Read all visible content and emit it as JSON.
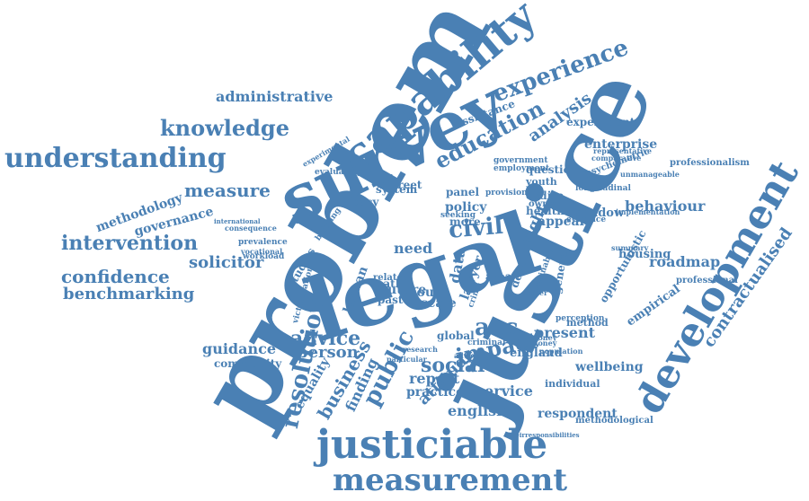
{
  "colors": {
    "word": "#4a80b4",
    "background": "#ffffff"
  },
  "words": [
    {
      "text": "problem"
    },
    {
      "text": "justice"
    },
    {
      "text": "legal"
    },
    {
      "text": "survey"
    },
    {
      "text": "development"
    },
    {
      "text": "capability"
    },
    {
      "text": "justiciable"
    },
    {
      "text": "measurement"
    },
    {
      "text": "understanding"
    },
    {
      "text": "experience"
    },
    {
      "text": "education"
    },
    {
      "text": "knowledge"
    },
    {
      "text": "intervention"
    },
    {
      "text": "resolution"
    },
    {
      "text": "civil"
    },
    {
      "text": "public"
    },
    {
      "text": "impact"
    },
    {
      "text": "social"
    },
    {
      "text": "advice"
    },
    {
      "text": "person"
    },
    {
      "text": "acc"
    },
    {
      "text": "measure"
    },
    {
      "text": "confidence"
    },
    {
      "text": "solicitor"
    },
    {
      "text": "benchmarking"
    },
    {
      "text": "administrative"
    },
    {
      "text": "methodology"
    },
    {
      "text": "governance"
    },
    {
      "text": "contractualised"
    },
    {
      "text": "analysis"
    },
    {
      "text": "enterprise"
    },
    {
      "text": "behaviour"
    },
    {
      "text": "roadmap"
    },
    {
      "text": "business"
    },
    {
      "text": "attitude"
    },
    {
      "text": "english"
    },
    {
      "text": "service"
    },
    {
      "text": "report"
    },
    {
      "text": "practice"
    },
    {
      "text": "wellbeing"
    },
    {
      "text": "respondent"
    },
    {
      "text": "guidance"
    },
    {
      "text": "community"
    },
    {
      "text": "equality"
    },
    {
      "text": "finding"
    },
    {
      "text": "empirical"
    },
    {
      "text": "experiment"
    },
    {
      "text": "assistance"
    },
    {
      "text": "need"
    },
    {
      "text": "right"
    },
    {
      "text": "appeal"
    },
    {
      "text": "shadow"
    },
    {
      "text": "housing"
    },
    {
      "text": "professional"
    },
    {
      "text": "professionalism"
    },
    {
      "text": "opportunistic"
    },
    {
      "text": "present"
    },
    {
      "text": "england"
    },
    {
      "text": "global"
    },
    {
      "text": "court"
    },
    {
      "text": "future"
    },
    {
      "text": "scale"
    },
    {
      "text": "human"
    },
    {
      "text": "path"
    },
    {
      "text": "past"
    },
    {
      "text": "data"
    },
    {
      "text": "lawyer"
    },
    {
      "text": "debt"
    },
    {
      "text": "policy"
    },
    {
      "text": "panel"
    },
    {
      "text": "street"
    },
    {
      "text": "system"
    },
    {
      "text": "efficacy"
    },
    {
      "text": "question"
    },
    {
      "text": "codire"
    },
    {
      "text": "health"
    },
    {
      "text": "youth"
    },
    {
      "text": "owner"
    },
    {
      "text": "provision"
    },
    {
      "text": "psychometric"
    },
    {
      "text": "representative"
    },
    {
      "text": "comparative"
    },
    {
      "text": "longitudinal"
    },
    {
      "text": "unmanageable"
    },
    {
      "text": "implementation"
    },
    {
      "text": "method"
    },
    {
      "text": "methodological"
    },
    {
      "text": "individual"
    },
    {
      "text": "more"
    },
    {
      "text": "seeking"
    },
    {
      "text": "general"
    },
    {
      "text": "sustainable"
    },
    {
      "text": "money"
    },
    {
      "text": "perception"
    },
    {
      "text": "population"
    },
    {
      "text": "money"
    },
    {
      "text": "area"
    },
    {
      "text": "other"
    },
    {
      "text": "studies"
    },
    {
      "text": "victimisation"
    },
    {
      "text": "related"
    },
    {
      "text": "building"
    },
    {
      "text": "crime"
    },
    {
      "text": "research"
    },
    {
      "text": "criminal"
    },
    {
      "text": "evaluating"
    },
    {
      "text": "experimental"
    },
    {
      "text": "government"
    },
    {
      "text": "employment"
    },
    {
      "text": "prevalence"
    },
    {
      "text": "vocational"
    },
    {
      "text": "workload"
    },
    {
      "text": "consequence"
    },
    {
      "text": "international"
    },
    {
      "text": "particular"
    },
    {
      "text": "advocacy"
    },
    {
      "text": "evidence"
    },
    {
      "text": "summary"
    },
    {
      "text": "theirresponsibilities"
    }
  ]
}
